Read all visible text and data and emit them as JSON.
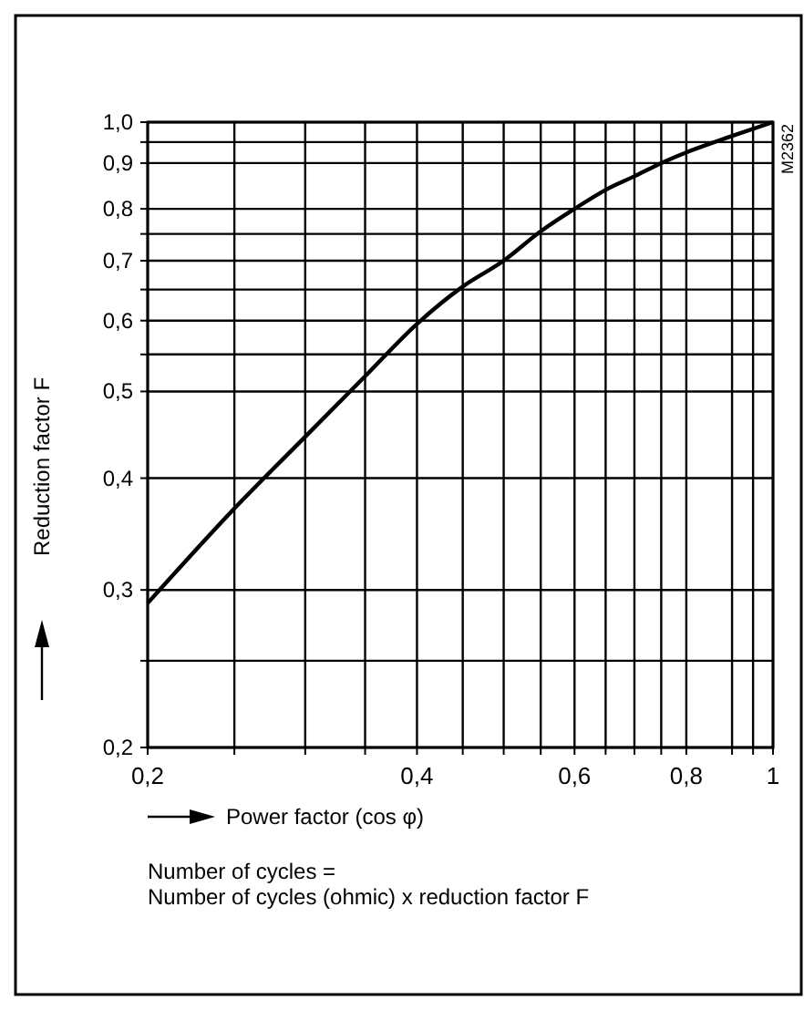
{
  "chart_data": {
    "type": "line",
    "xlabel": "Power factor (cos φ)",
    "ylabel": "Reduction factor F",
    "log": "xy",
    "grid": true,
    "marker": "none",
    "line_style": "solid",
    "xlim": [
      0.2,
      1
    ],
    "ylim": [
      0.2,
      1
    ],
    "xticks": [
      {
        "value": 0.2,
        "label": "0,2"
      },
      {
        "value": 0.25,
        "label": null
      },
      {
        "value": 0.3,
        "label": null
      },
      {
        "value": 0.35,
        "label": null
      },
      {
        "value": 0.4,
        "label": "0,4"
      },
      {
        "value": 0.45,
        "label": null
      },
      {
        "value": 0.5,
        "label": null
      },
      {
        "value": 0.55,
        "label": null
      },
      {
        "value": 0.6,
        "label": "0,6"
      },
      {
        "value": 0.65,
        "label": null
      },
      {
        "value": 0.7,
        "label": null
      },
      {
        "value": 0.75,
        "label": null
      },
      {
        "value": 0.8,
        "label": "0,8"
      },
      {
        "value": 0.9,
        "label": null
      },
      {
        "value": 0.95,
        "label": null
      },
      {
        "value": 1,
        "label": "1"
      }
    ],
    "yticks": [
      {
        "value": 0.2,
        "label": "0,2"
      },
      {
        "value": 0.25,
        "label": null
      },
      {
        "value": 0.3,
        "label": "0,3"
      },
      {
        "value": 0.4,
        "label": "0,4"
      },
      {
        "value": 0.5,
        "label": "0,5"
      },
      {
        "value": 0.55,
        "label": null
      },
      {
        "value": 0.6,
        "label": "0,6"
      },
      {
        "value": 0.65,
        "label": null
      },
      {
        "value": 0.7,
        "label": "0,7"
      },
      {
        "value": 0.75,
        "label": null
      },
      {
        "value": 0.8,
        "label": "0,8"
      },
      {
        "value": 0.9,
        "label": "0,9"
      },
      {
        "value": 0.95,
        "label": null
      },
      {
        "value": 1,
        "label": "1,0"
      }
    ],
    "x": [
      0.2,
      0.25,
      0.3,
      0.35,
      0.4,
      0.45,
      0.5,
      0.55,
      0.6,
      0.65,
      0.7,
      0.75,
      0.8,
      0.9,
      1.0
    ],
    "series": [
      {
        "color": "#000000",
        "values": [
          0.29,
          0.37,
          0.445,
          0.52,
          0.595,
          0.655,
          0.7,
          0.755,
          0.8,
          0.84,
          0.87,
          0.9,
          0.925,
          0.965,
          1.0
        ]
      }
    ],
    "annotations": [
      "Number of cycles =",
      "Number of cycles (ohmic) x reduction factor F",
      "M2362"
    ]
  }
}
